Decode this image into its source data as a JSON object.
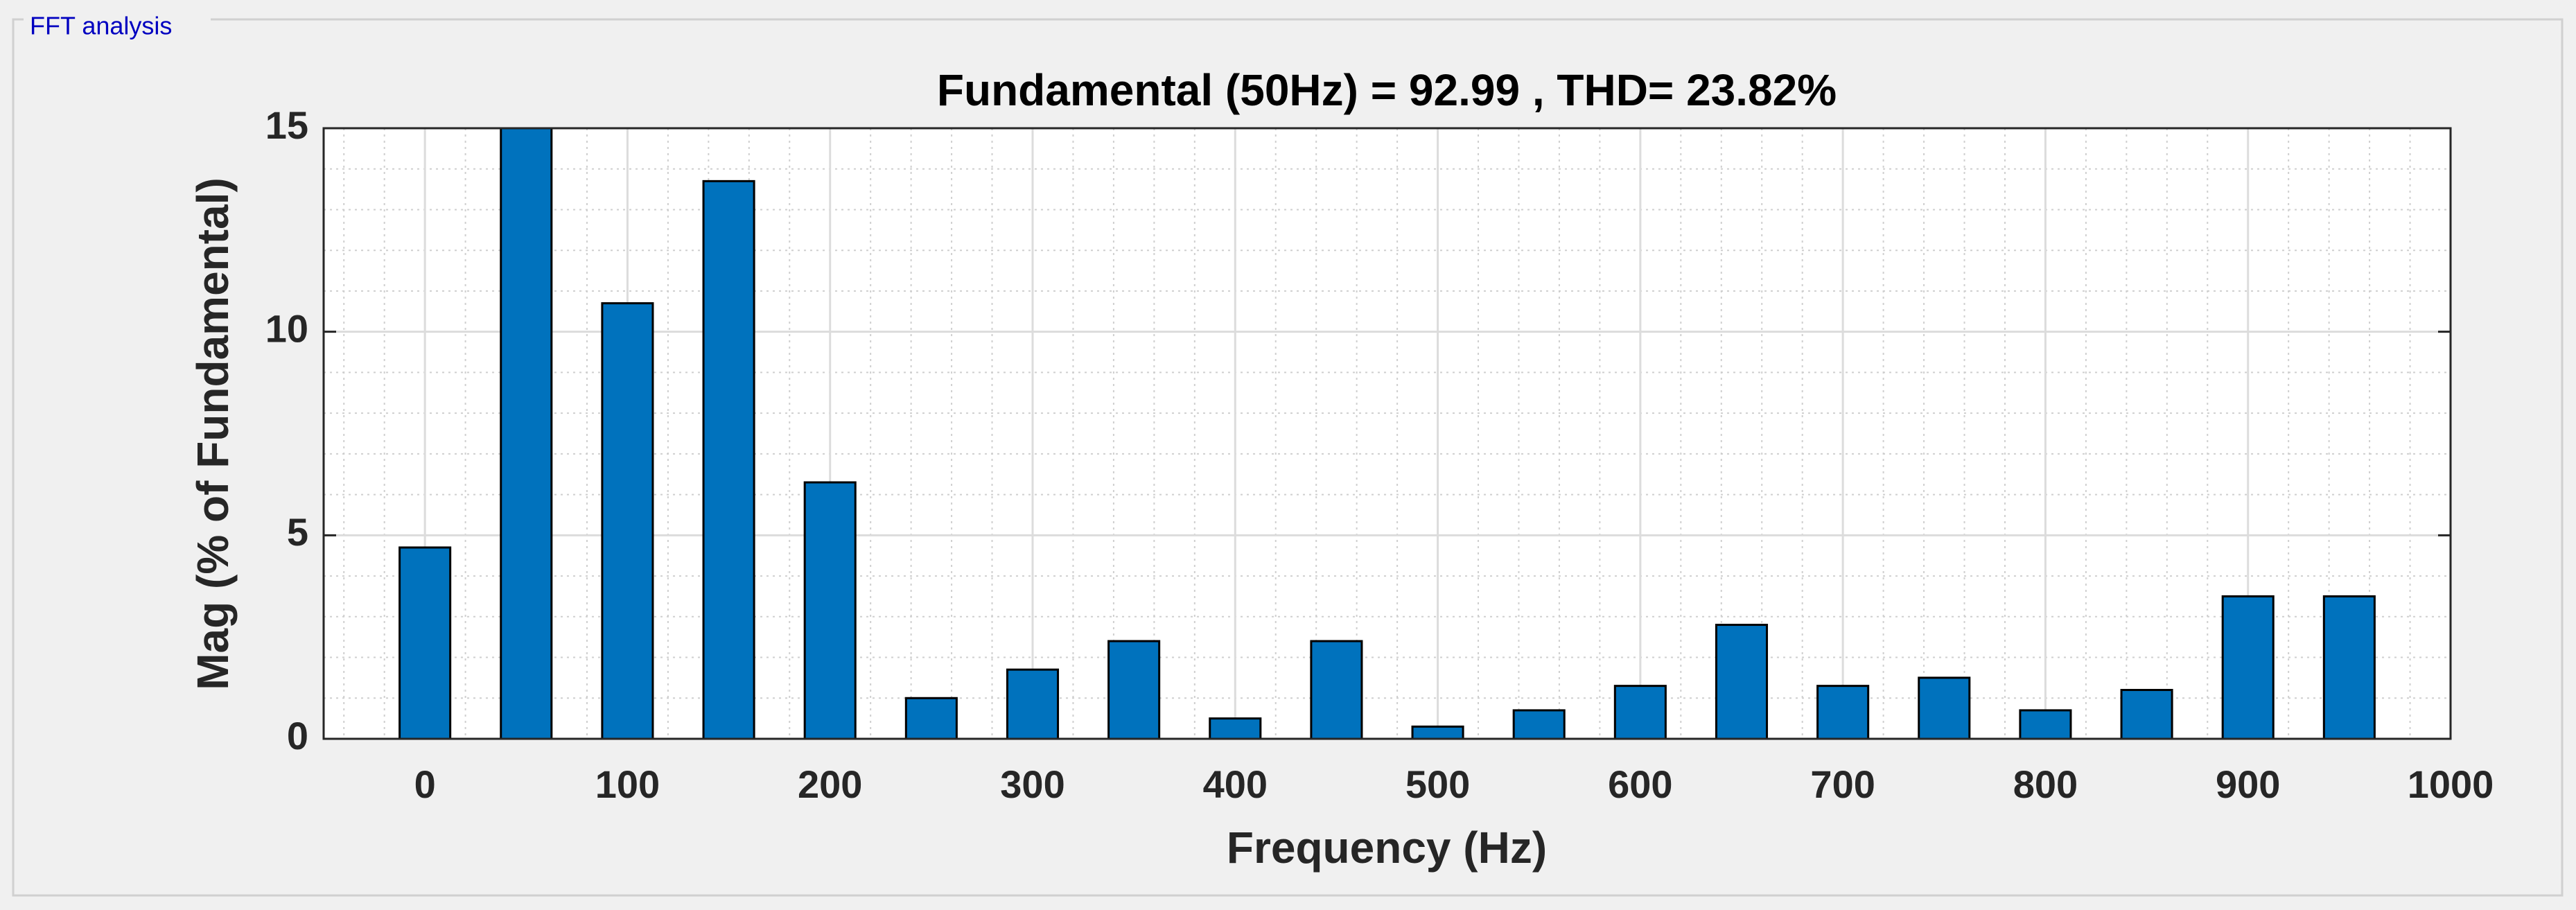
{
  "panel_title": "FFT analysis",
  "chart_data": {
    "type": "bar",
    "title": "Fundamental (50Hz) = 92.99 , THD= 23.82%",
    "x_label": "Frequency (Hz)",
    "y_label": "Mag (% of Fundamental)",
    "x": [
      0,
      50,
      100,
      150,
      200,
      250,
      300,
      350,
      400,
      450,
      500,
      550,
      600,
      650,
      700,
      750,
      800,
      850,
      900,
      950
    ],
    "values": [
      4.7,
      15.5,
      10.7,
      13.7,
      6.3,
      1.0,
      1.7,
      2.4,
      0.5,
      2.4,
      0.3,
      0.7,
      1.3,
      2.8,
      1.3,
      1.5,
      0.7,
      1.2,
      3.5,
      3.5
    ],
    "color": "#0072bd",
    "xlim": [
      -50,
      1000
    ],
    "xticks": [
      0,
      100,
      200,
      300,
      400,
      500,
      600,
      700,
      800,
      900,
      1000
    ],
    "ylim": [
      0,
      15
    ],
    "yticks": [
      0,
      5,
      10,
      15
    ],
    "grid": true,
    "minor_grid": true
  }
}
